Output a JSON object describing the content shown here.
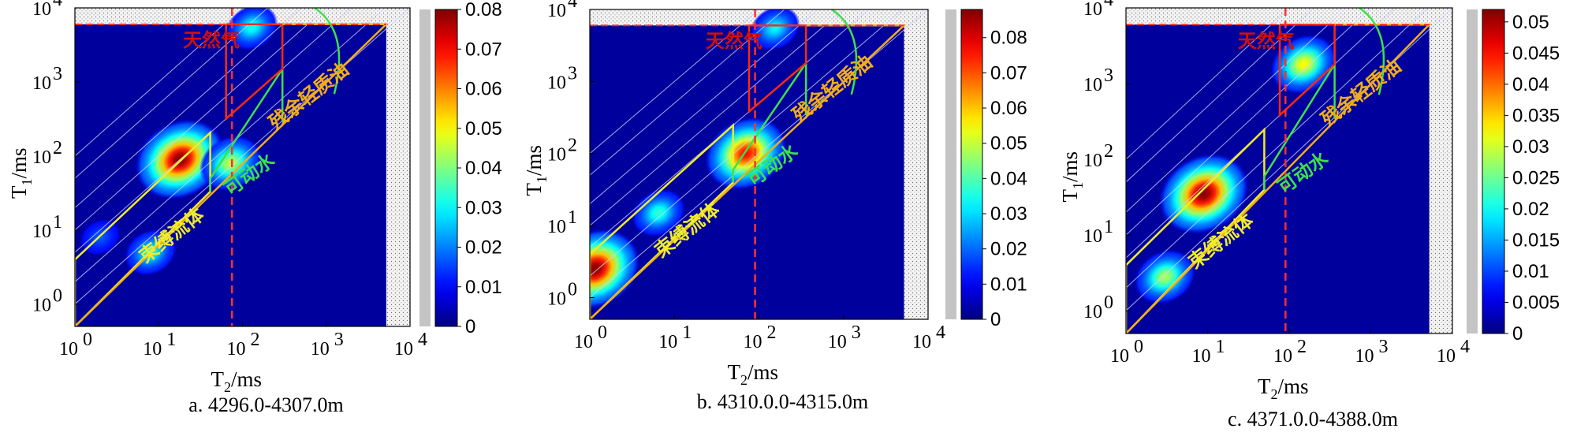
{
  "colors": {
    "bound_fluid": "#f0ec2a",
    "movable_water": "#3ee04a",
    "natural_gas": "#ff2a0a",
    "natural_gas_text": "#d0100a",
    "residual_oil": "#f2ad1a",
    "t2_cutoff": "#ff2f2f",
    "background": "#00009c"
  },
  "chart_data": [
    {
      "type": "heatmap",
      "xlabel": "T2/ms",
      "ylabel": "T1/ms",
      "x_scale": "log",
      "y_scale": "log",
      "xlim": [
        1,
        10000
      ],
      "ylim": [
        0.5,
        10000
      ],
      "x_ticks": [
        {
          "base": "10",
          "exp": "0"
        },
        {
          "base": "10",
          "exp": "1"
        },
        {
          "base": "10",
          "exp": "2"
        },
        {
          "base": "10",
          "exp": "3"
        },
        {
          "base": "10",
          "exp": "4"
        }
      ],
      "y_ticks": [
        {
          "base": "10",
          "exp": "0"
        },
        {
          "base": "10",
          "exp": "1"
        },
        {
          "base": "10",
          "exp": "2"
        },
        {
          "base": "10",
          "exp": "3"
        },
        {
          "base": "10",
          "exp": "4"
        }
      ],
      "colorbar_ticks": [
        "0",
        "0.01",
        "0.02",
        "0.03",
        "0.04",
        "0.05",
        "0.06",
        "0.07",
        "0.08"
      ],
      "colorbar_range": [
        0,
        0.08
      ],
      "region_labels": {
        "bound_fluid": "束缚流体",
        "movable_water": "可动水",
        "natural_gas": "天然气",
        "residual_oil": "残余轻质油"
      },
      "t2_cutoff": 75,
      "peaks": [
        {
          "t2": 18,
          "t1": 90,
          "value": 0.08
        },
        {
          "t2": 72,
          "t1": 80,
          "value": 0.04
        },
        {
          "t2": 8,
          "t1": 5,
          "value": 0.025
        },
        {
          "t2": 2,
          "t1": 8,
          "value": 0.008
        },
        {
          "t2": 130,
          "t1": 5500,
          "value": 0.025
        }
      ],
      "caption": "a. 4296.0-4307.0m"
    },
    {
      "type": "heatmap",
      "xlabel": "T2/ms",
      "ylabel": "T1/ms",
      "x_scale": "log",
      "y_scale": "log",
      "xlim": [
        1,
        10000
      ],
      "ylim": [
        0.5,
        10000
      ],
      "x_ticks": [
        {
          "base": "10",
          "exp": "0"
        },
        {
          "base": "10",
          "exp": "1"
        },
        {
          "base": "10",
          "exp": "2"
        },
        {
          "base": "10",
          "exp": "3"
        },
        {
          "base": "10",
          "exp": "4"
        }
      ],
      "y_ticks": [
        {
          "base": "10",
          "exp": "0"
        },
        {
          "base": "10",
          "exp": "1"
        },
        {
          "base": "10",
          "exp": "2"
        },
        {
          "base": "10",
          "exp": "3"
        },
        {
          "base": "10",
          "exp": "4"
        }
      ],
      "colorbar_ticks": [
        "0",
        "0.01",
        "0.02",
        "0.03",
        "0.04",
        "0.05",
        "0.06",
        "0.07",
        "0.08"
      ],
      "colorbar_range": [
        0,
        0.088
      ],
      "region_labels": {
        "bound_fluid": "束缚流体",
        "movable_water": "可动水",
        "natural_gas": "天然气",
        "residual_oil": "残余轻质油"
      },
      "t2_cutoff": 90,
      "peaks": [
        {
          "t2": 1.15,
          "t1": 2.5,
          "value": 0.088
        },
        {
          "t2": 6.5,
          "t1": 15,
          "value": 0.03
        },
        {
          "t2": 70,
          "t1": 100,
          "value": 0.075
        },
        {
          "t2": 155,
          "t1": 5500,
          "value": 0.025
        }
      ],
      "caption": "b. 4310.0.0-4315.0m"
    },
    {
      "type": "heatmap",
      "xlabel": "T2/ms",
      "ylabel": "T1/ms",
      "x_scale": "log",
      "y_scale": "log",
      "xlim": [
        1,
        10000
      ],
      "ylim": [
        0.5,
        10000
      ],
      "x_ticks": [
        {
          "base": "10",
          "exp": "0"
        },
        {
          "base": "10",
          "exp": "1"
        },
        {
          "base": "10",
          "exp": "2"
        },
        {
          "base": "10",
          "exp": "3"
        },
        {
          "base": "10",
          "exp": "4"
        }
      ],
      "y_ticks": [
        {
          "base": "10",
          "exp": "0"
        },
        {
          "base": "10",
          "exp": "1"
        },
        {
          "base": "10",
          "exp": "2"
        },
        {
          "base": "10",
          "exp": "3"
        },
        {
          "base": "10",
          "exp": "4"
        }
      ],
      "colorbar_ticks": [
        "0",
        "0.005",
        "0.01",
        "0.015",
        "0.02",
        "0.025",
        "0.03",
        "0.035",
        "0.04",
        "0.045",
        "0.05"
      ],
      "colorbar_range": [
        0,
        0.052
      ],
      "region_labels": {
        "bound_fluid": "束缚流体",
        "movable_water": "可动水",
        "natural_gas": "天然气",
        "residual_oil": "残余轻质油"
      },
      "t2_cutoff": 90,
      "peaks": [
        {
          "t2": 9,
          "t1": 35,
          "value": 0.052
        },
        {
          "t2": 3,
          "t1": 2.8,
          "value": 0.025
        },
        {
          "t2": 150,
          "t1": 1800,
          "value": 0.03
        }
      ],
      "caption": "c. 4371.0.0-4388.0m"
    }
  ]
}
